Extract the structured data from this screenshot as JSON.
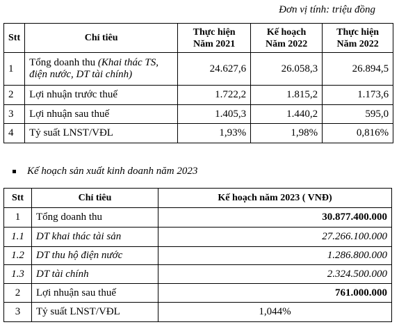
{
  "header": {
    "unit": "Đơn vị tính: triệu đồng"
  },
  "table1": {
    "columns": [
      "Stt",
      "Chỉ tiêu",
      "Thực hiện\nNăm 2021",
      "Kế hoạch\nNăm 2022",
      "Thực hiện\nNăm 2022"
    ],
    "rows": [
      [
        {
          "text": "1"
        },
        {
          "text": "Tổng doanh thu",
          "note": "(Khai thác TS, điện nước, DT tài chính)"
        },
        {
          "text": "24.627,6"
        },
        {
          "text": "26.058,3"
        },
        {
          "text": "26.894,5"
        }
      ],
      [
        {
          "text": "2"
        },
        {
          "text": "Lợi nhuận trước thuế"
        },
        {
          "text": "1.722,2"
        },
        {
          "text": "1.815,2"
        },
        {
          "text": "1.173,6"
        }
      ],
      [
        {
          "text": "3"
        },
        {
          "text": "Lợi nhuận sau thuế"
        },
        {
          "text": "1.405,3"
        },
        {
          "text": "1.440,2"
        },
        {
          "text": "595,0"
        }
      ],
      [
        {
          "text": "4"
        },
        {
          "text": "Tỷ suất LNST/VĐL"
        },
        {
          "text": "1,93%"
        },
        {
          "text": "1,98%"
        },
        {
          "text": "0,816%"
        }
      ]
    ]
  },
  "section": {
    "title": "Kế hoạch sản xuất kinh doanh năm 2023"
  },
  "table2": {
    "columns": [
      "Stt",
      "Chỉ tiêu",
      "Kế hoạch năm 2023 ( VNĐ)"
    ],
    "rows": [
      [
        {
          "text": "1"
        },
        {
          "text": "Tổng doanh thu"
        },
        {
          "text": "30.877.400.000"
        }
      ],
      [
        {
          "text": "1.1"
        },
        {
          "text": "DT khai thác tài sản"
        },
        {
          "text": "27.266.100.000"
        }
      ],
      [
        {
          "text": "1.2"
        },
        {
          "text": "DT thu hộ điện nước"
        },
        {
          "text": "1.286.800.000"
        }
      ],
      [
        {
          "text": "1.3"
        },
        {
          "text": "DT tài chính"
        },
        {
          "text": "2.324.500.000"
        }
      ],
      [
        {
          "text": "2"
        },
        {
          "text": "Lợi nhuận sau thuế"
        },
        {
          "text": "761.000.000"
        }
      ],
      [
        {
          "text": "3"
        },
        {
          "text": "Tỷ suất LNST/VĐL"
        },
        {
          "text": "1,044%"
        }
      ]
    ]
  }
}
